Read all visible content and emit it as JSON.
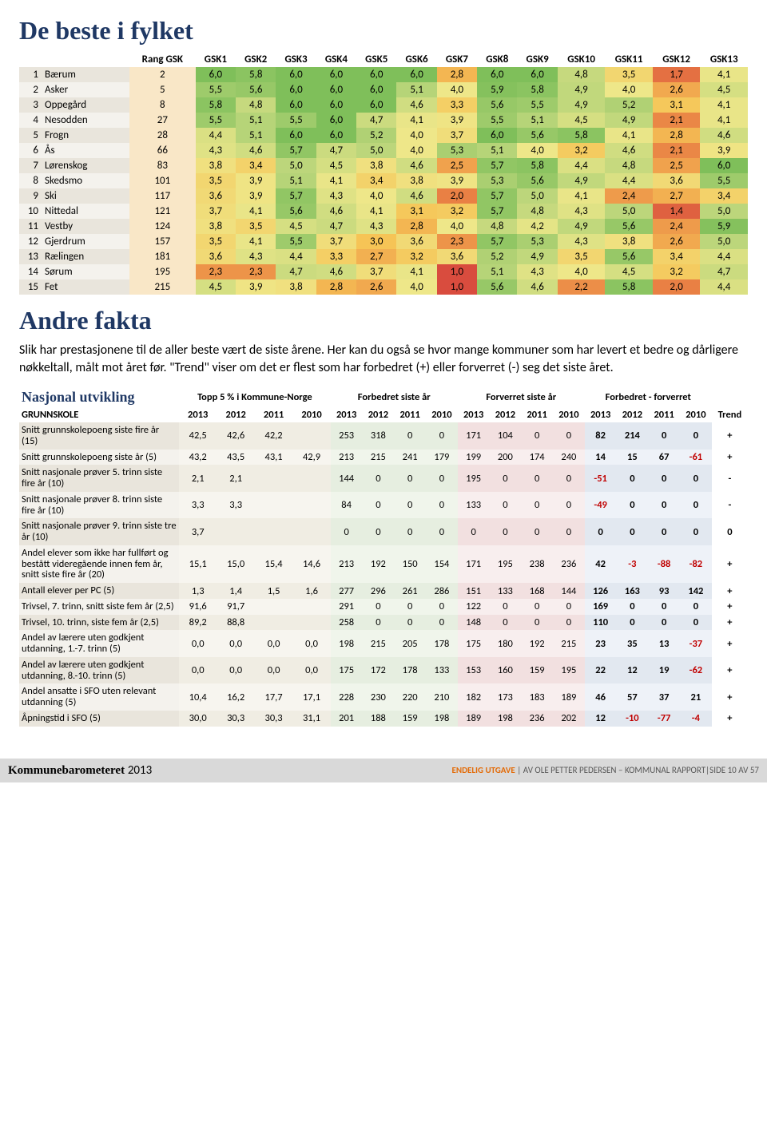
{
  "title1": "De beste i fylket",
  "table1": {
    "headers": [
      "",
      "",
      "Rang GSK",
      "GSK1",
      "GSK2",
      "GSK3",
      "GSK4",
      "GSK5",
      "GSK6",
      "GSK7",
      "GSK8",
      "GSK9",
      "GSK10",
      "GSK11",
      "GSK12",
      "GSK13"
    ],
    "rows": [
      {
        "rank": "1",
        "name": "Bærum",
        "rang": "2",
        "v": [
          "6,0",
          "5,8",
          "6,0",
          "6,0",
          "6,0",
          "6,0",
          "2,8",
          "6,0",
          "6,0",
          "4,8",
          "3,5",
          "1,7",
          "4,1"
        ]
      },
      {
        "rank": "2",
        "name": "Asker",
        "rang": "5",
        "v": [
          "5,5",
          "5,6",
          "6,0",
          "6,0",
          "6,0",
          "5,1",
          "4,0",
          "5,9",
          "5,8",
          "4,9",
          "4,0",
          "2,6",
          "4,5"
        ]
      },
      {
        "rank": "3",
        "name": "Oppegård",
        "rang": "8",
        "v": [
          "5,8",
          "4,8",
          "6,0",
          "6,0",
          "6,0",
          "4,6",
          "3,3",
          "5,6",
          "5,5",
          "4,9",
          "5,2",
          "3,1",
          "4,1"
        ]
      },
      {
        "rank": "4",
        "name": "Nesodden",
        "rang": "27",
        "v": [
          "5,5",
          "5,1",
          "5,5",
          "6,0",
          "4,7",
          "4,1",
          "3,9",
          "5,5",
          "5,1",
          "4,5",
          "4,9",
          "2,1",
          "4,1"
        ]
      },
      {
        "rank": "5",
        "name": "Frogn",
        "rang": "28",
        "v": [
          "4,4",
          "5,1",
          "6,0",
          "6,0",
          "5,2",
          "4,0",
          "3,7",
          "6,0",
          "5,6",
          "5,8",
          "4,1",
          "2,8",
          "4,6"
        ]
      },
      {
        "rank": "6",
        "name": "Ås",
        "rang": "66",
        "v": [
          "4,3",
          "4,6",
          "5,7",
          "4,7",
          "5,0",
          "4,0",
          "5,3",
          "5,1",
          "4,0",
          "3,2",
          "4,6",
          "2,1",
          "3,9"
        ]
      },
      {
        "rank": "7",
        "name": "Lørenskog",
        "rang": "83",
        "v": [
          "3,8",
          "3,4",
          "5,0",
          "4,5",
          "3,8",
          "4,6",
          "2,5",
          "5,7",
          "5,8",
          "4,4",
          "4,8",
          "2,5",
          "6,0"
        ]
      },
      {
        "rank": "8",
        "name": "Skedsmo",
        "rang": "101",
        "v": [
          "3,5",
          "3,9",
          "5,1",
          "4,1",
          "3,4",
          "3,8",
          "3,9",
          "5,3",
          "5,6",
          "4,9",
          "4,4",
          "3,6",
          "5,5"
        ]
      },
      {
        "rank": "9",
        "name": "Ski",
        "rang": "117",
        "v": [
          "3,6",
          "3,9",
          "5,7",
          "4,3",
          "4,0",
          "4,6",
          "2,0",
          "5,7",
          "5,0",
          "4,1",
          "2,4",
          "2,7",
          "3,4"
        ]
      },
      {
        "rank": "10",
        "name": "Nittedal",
        "rang": "121",
        "v": [
          "3,7",
          "4,1",
          "5,6",
          "4,6",
          "4,1",
          "3,1",
          "3,2",
          "5,7",
          "4,8",
          "4,3",
          "5,0",
          "1,4",
          "5,0"
        ]
      },
      {
        "rank": "11",
        "name": "Vestby",
        "rang": "124",
        "v": [
          "3,8",
          "3,5",
          "4,5",
          "4,7",
          "4,3",
          "2,8",
          "4,0",
          "4,8",
          "4,2",
          "4,9",
          "5,6",
          "2,4",
          "5,9"
        ]
      },
      {
        "rank": "12",
        "name": "Gjerdrum",
        "rang": "157",
        "v": [
          "3,5",
          "4,1",
          "5,5",
          "3,7",
          "3,0",
          "3,6",
          "2,3",
          "5,7",
          "5,3",
          "4,3",
          "3,8",
          "2,6",
          "5,0"
        ]
      },
      {
        "rank": "13",
        "name": "Rælingen",
        "rang": "181",
        "v": [
          "3,6",
          "4,3",
          "4,4",
          "3,3",
          "2,7",
          "3,2",
          "3,6",
          "5,2",
          "4,9",
          "3,5",
          "5,6",
          "3,4",
          "4,4"
        ]
      },
      {
        "rank": "14",
        "name": "Sørum",
        "rang": "195",
        "v": [
          "2,3",
          "2,3",
          "4,7",
          "4,6",
          "3,7",
          "4,1",
          "1,0",
          "5,1",
          "4,3",
          "4,0",
          "4,5",
          "3,2",
          "4,7"
        ]
      },
      {
        "rank": "15",
        "name": "Fet",
        "rang": "215",
        "v": [
          "4,5",
          "3,9",
          "3,8",
          "2,8",
          "2,6",
          "4,0",
          "1,0",
          "5,6",
          "4,6",
          "2,2",
          "5,8",
          "2,0",
          "4,4"
        ]
      }
    ],
    "colors": {
      "scale_min": 1.0,
      "scale_max": 6.0,
      "stops": [
        {
          "v": 1.0,
          "c": "#d94c3e"
        },
        {
          "v": 2.0,
          "c": "#e98044"
        },
        {
          "v": 3.0,
          "c": "#f6c456"
        },
        {
          "v": 4.0,
          "c": "#eee789"
        },
        {
          "v": 5.0,
          "c": "#bcd67b"
        },
        {
          "v": 6.0,
          "c": "#7fbf5a"
        }
      ]
    }
  },
  "title2": "Andre fakta",
  "para": "Slik har prestasjonene til de aller beste vært de siste årene. Her kan du også se hvor mange kommuner som har levert et bedre og dårligere nøkkeltall, målt mot året før. \"Trend\" viser om det er flest som har forbedret (+) eller forverret (-) seg det siste året.",
  "table2": {
    "title": "Nasjonal utvikling",
    "group_headers": [
      "Topp 5 % i Kommune-Norge",
      "Forbedret siste år",
      "Forverret siste år",
      "Forbedret - forverret"
    ],
    "subheader_label": "GRUNNSKOLE",
    "years": [
      "2013",
      "2012",
      "2011",
      "2010"
    ],
    "trend_label": "Trend",
    "rows": [
      {
        "label": "Snitt grunnskolepoeng siste fire år (15)",
        "topp": [
          "42,5",
          "42,6",
          "42,2",
          ""
        ],
        "fb": [
          "253",
          "318",
          "0",
          "0"
        ],
        "fv": [
          "171",
          "104",
          "0",
          "0"
        ],
        "diff": [
          "82",
          "214",
          "0",
          "0"
        ],
        "trend": "+"
      },
      {
        "label": "Snitt grunnskolepoeng siste år (5)",
        "topp": [
          "43,2",
          "43,5",
          "43,1",
          "42,9"
        ],
        "fb": [
          "213",
          "215",
          "241",
          "179"
        ],
        "fv": [
          "199",
          "200",
          "174",
          "240"
        ],
        "diff": [
          "14",
          "15",
          "67",
          "-61"
        ],
        "trend": "+"
      },
      {
        "label": "Snitt nasjonale prøver 5. trinn siste fire år (10)",
        "topp": [
          "2,1",
          "2,1",
          "",
          ""
        ],
        "fb": [
          "144",
          "0",
          "0",
          "0"
        ],
        "fv": [
          "195",
          "0",
          "0",
          "0"
        ],
        "diff": [
          "-51",
          "0",
          "0",
          "0"
        ],
        "trend": "-"
      },
      {
        "label": "Snitt nasjonale prøver 8. trinn siste fire år (10)",
        "topp": [
          "3,3",
          "3,3",
          "",
          ""
        ],
        "fb": [
          "84",
          "0",
          "0",
          "0"
        ],
        "fv": [
          "133",
          "0",
          "0",
          "0"
        ],
        "diff": [
          "-49",
          "0",
          "0",
          "0"
        ],
        "trend": "-"
      },
      {
        "label": "Snitt nasjonale prøver 9. trinn siste tre år (10)",
        "topp": [
          "3,7",
          "",
          "",
          ""
        ],
        "fb": [
          "0",
          "0",
          "0",
          "0"
        ],
        "fv": [
          "0",
          "0",
          "0",
          "0"
        ],
        "diff": [
          "0",
          "0",
          "0",
          "0"
        ],
        "trend": "0"
      },
      {
        "label": "Andel elever som ikke har fullført og bestått videregående innen fem år, snitt siste fire år (20)",
        "topp": [
          "15,1",
          "15,0",
          "15,4",
          "14,6"
        ],
        "fb": [
          "213",
          "192",
          "150",
          "154"
        ],
        "fv": [
          "171",
          "195",
          "238",
          "236"
        ],
        "diff": [
          "42",
          "-3",
          "-88",
          "-82"
        ],
        "trend": "+"
      },
      {
        "label": "Antall elever per PC (5)",
        "topp": [
          "1,3",
          "1,4",
          "1,5",
          "1,6"
        ],
        "fb": [
          "277",
          "296",
          "261",
          "286"
        ],
        "fv": [
          "151",
          "133",
          "168",
          "144"
        ],
        "diff": [
          "126",
          "163",
          "93",
          "142"
        ],
        "trend": "+"
      },
      {
        "label": "Trivsel, 7. trinn, snitt siste fem år (2,5)",
        "topp": [
          "91,6",
          "91,7",
          "",
          ""
        ],
        "fb": [
          "291",
          "0",
          "0",
          "0"
        ],
        "fv": [
          "122",
          "0",
          "0",
          "0"
        ],
        "diff": [
          "169",
          "0",
          "0",
          "0"
        ],
        "trend": "+"
      },
      {
        "label": "Trivsel, 10. trinn, siste fem år (2,5)",
        "topp": [
          "89,2",
          "88,8",
          "",
          ""
        ],
        "fb": [
          "258",
          "0",
          "0",
          "0"
        ],
        "fv": [
          "148",
          "0",
          "0",
          "0"
        ],
        "diff": [
          "110",
          "0",
          "0",
          "0"
        ],
        "trend": "+"
      },
      {
        "label": "Andel av lærere uten godkjent utdanning, 1.-7. trinn (5)",
        "topp": [
          "0,0",
          "0,0",
          "0,0",
          "0,0"
        ],
        "fb": [
          "198",
          "215",
          "205",
          "178"
        ],
        "fv": [
          "175",
          "180",
          "192",
          "215"
        ],
        "diff": [
          "23",
          "35",
          "13",
          "-37"
        ],
        "trend": "+"
      },
      {
        "label": "Andel av lærere uten godkjent utdanning, 8.-10. trinn (5)",
        "topp": [
          "0,0",
          "0,0",
          "0,0",
          "0,0"
        ],
        "fb": [
          "175",
          "172",
          "178",
          "133"
        ],
        "fv": [
          "153",
          "160",
          "159",
          "195"
        ],
        "diff": [
          "22",
          "12",
          "19",
          "-62"
        ],
        "trend": "+"
      },
      {
        "label": "Andel ansatte i SFO uten relevant utdanning (5)",
        "topp": [
          "10,4",
          "16,2",
          "17,7",
          "17,1"
        ],
        "fb": [
          "228",
          "230",
          "220",
          "210"
        ],
        "fv": [
          "182",
          "173",
          "183",
          "189"
        ],
        "diff": [
          "46",
          "57",
          "37",
          "21"
        ],
        "trend": "+"
      },
      {
        "label": "Åpningstid i SFO (5)",
        "topp": [
          "30,0",
          "30,3",
          "30,3",
          "31,1"
        ],
        "fb": [
          "201",
          "188",
          "159",
          "198"
        ],
        "fv": [
          "189",
          "198",
          "236",
          "202"
        ],
        "diff": [
          "12",
          "-10",
          "-77",
          "-4"
        ],
        "trend": "+"
      }
    ]
  },
  "footer": {
    "logo_a": "Kommune",
    "logo_b": "barometeret ",
    "logo_year": "2013",
    "endelig": "ENDELIG UTGAVE",
    "rest": " | AV OLE PETTER PEDERSEN – KOMMUNAL RAPPORT|SIDE 10 AV 57"
  }
}
